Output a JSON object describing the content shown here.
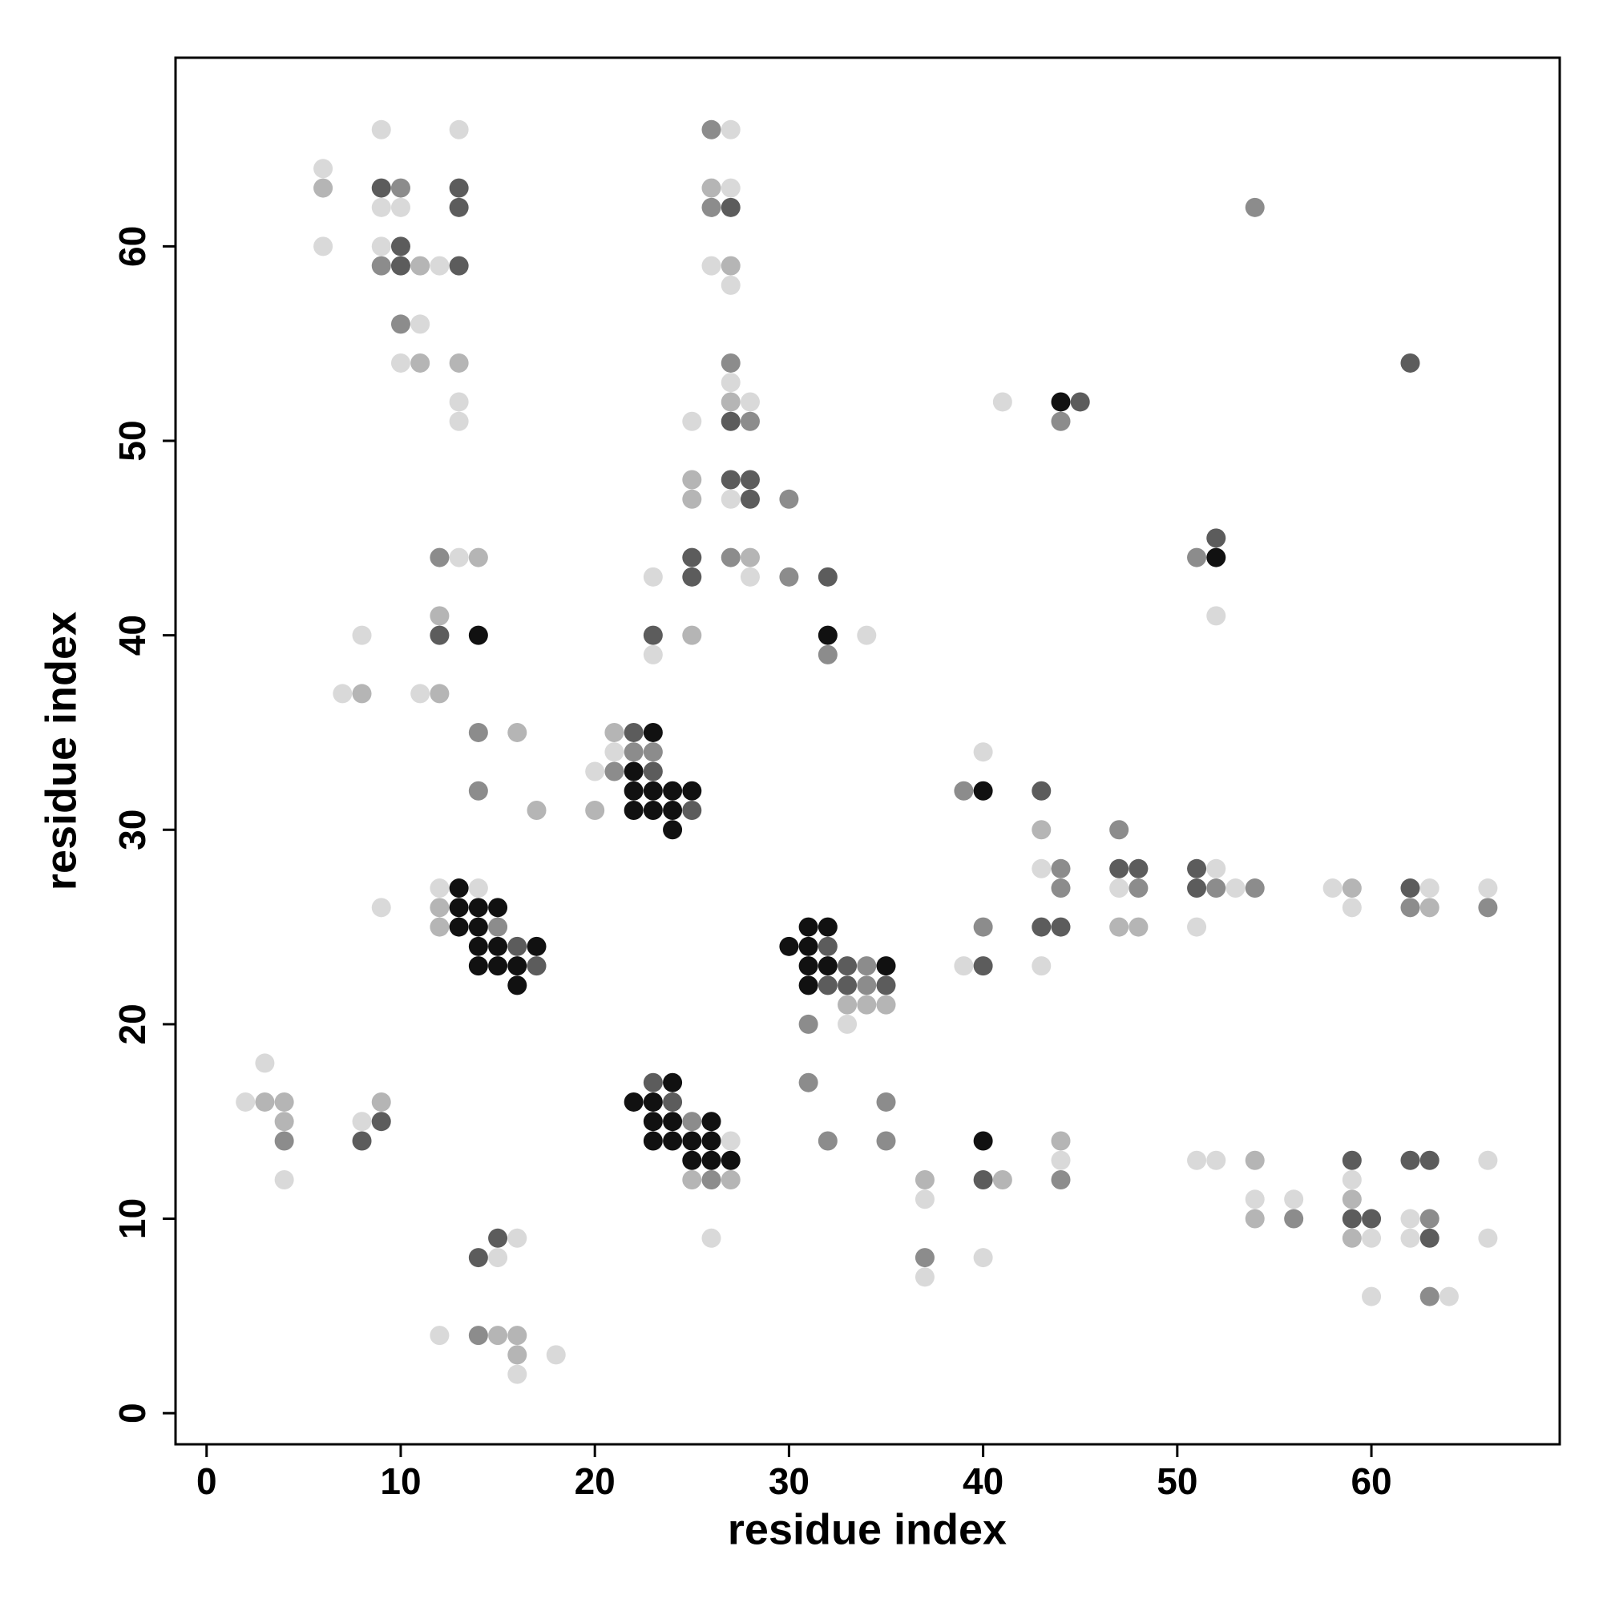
{
  "chart_data": {
    "type": "scatter",
    "xlabel": "residue index",
    "ylabel": "residue index",
    "xlim": [
      -1.6,
      69.7
    ],
    "ylim": [
      -1.6,
      69.7
    ],
    "xticks": [
      0,
      10,
      20,
      30,
      40,
      50,
      60
    ],
    "yticks": [
      0,
      10,
      20,
      30,
      40,
      50,
      60
    ],
    "grid": false,
    "series": [
      {
        "color": "#d9d9d9",
        "x": [
          6,
          6,
          9,
          9,
          9,
          10,
          10,
          11,
          12,
          13,
          13,
          13,
          27,
          27,
          26,
          27,
          27,
          28,
          25,
          27,
          23,
          28,
          23,
          34,
          41,
          52,
          13,
          8,
          7,
          11,
          20,
          21,
          9,
          12,
          14,
          33,
          40,
          43,
          39,
          43,
          47,
          52,
          53,
          51,
          58,
          59,
          63,
          66,
          3,
          2,
          4,
          8,
          15,
          16,
          12,
          16,
          18,
          26,
          27,
          37,
          37,
          40,
          44,
          51,
          52,
          54,
          56,
          59,
          60,
          60,
          62,
          62,
          64,
          66,
          66
        ],
        "values": [
          64,
          60,
          66,
          62,
          60,
          62,
          54,
          56,
          59,
          66,
          52,
          51,
          66,
          63,
          59,
          58,
          53,
          52,
          51,
          47,
          43,
          43,
          39,
          40,
          52,
          41,
          44,
          40,
          37,
          37,
          33,
          34,
          26,
          27,
          27,
          20,
          34,
          28,
          23,
          23,
          27,
          28,
          27,
          25,
          27,
          26,
          27,
          27,
          18,
          16,
          12,
          15,
          8,
          9,
          4,
          2,
          3,
          9,
          14,
          11,
          7,
          8,
          13,
          13,
          13,
          11,
          11,
          12,
          9,
          6,
          10,
          9,
          6,
          13,
          9
        ]
      },
      {
        "color": "#b5b5b5",
        "x": [
          6,
          11,
          11,
          13,
          26,
          27,
          27,
          25,
          25,
          28,
          25,
          12,
          14,
          8,
          12,
          16,
          17,
          20,
          21,
          12,
          12,
          33,
          34,
          35,
          43,
          47,
          48,
          59,
          63,
          3,
          4,
          4,
          9,
          15,
          16,
          16,
          25,
          27,
          37,
          41,
          44,
          54,
          54,
          59,
          59
        ],
        "values": [
          63,
          59,
          54,
          54,
          63,
          59,
          52,
          48,
          47,
          44,
          40,
          41,
          44,
          37,
          37,
          35,
          31,
          31,
          35,
          26,
          25,
          21,
          21,
          21,
          30,
          25,
          25,
          27,
          26,
          16,
          16,
          15,
          16,
          4,
          4,
          3,
          12,
          12,
          12,
          12,
          14,
          13,
          10,
          11,
          9
        ]
      },
      {
        "color": "#8c8c8c",
        "x": [
          9,
          10,
          10,
          26,
          26,
          27,
          28,
          30,
          27,
          30,
          32,
          44,
          54,
          51,
          12,
          14,
          14,
          21,
          22,
          23,
          15,
          31,
          34,
          34,
          39,
          44,
          44,
          40,
          47,
          48,
          52,
          54,
          62,
          66,
          4,
          14,
          25,
          26,
          31,
          32,
          35,
          35,
          37,
          44,
          56,
          63,
          63
        ],
        "values": [
          59,
          63,
          56,
          66,
          62,
          54,
          51,
          47,
          44,
          43,
          39,
          51,
          62,
          44,
          44,
          35,
          32,
          33,
          34,
          34,
          25,
          20,
          23,
          22,
          32,
          28,
          27,
          25,
          30,
          27,
          27,
          27,
          26,
          26,
          14,
          4,
          15,
          12,
          17,
          14,
          16,
          14,
          8,
          12,
          10,
          10,
          6
        ]
      },
      {
        "color": "#5c5c5c",
        "x": [
          9,
          10,
          10,
          13,
          13,
          13,
          27,
          27,
          27,
          28,
          28,
          25,
          25,
          32,
          23,
          45,
          62,
          52,
          12,
          22,
          23,
          25,
          16,
          17,
          32,
          32,
          33,
          33,
          35,
          43,
          43,
          44,
          40,
          47,
          48,
          51,
          51,
          62,
          8,
          9,
          14,
          15,
          23,
          24,
          40,
          59,
          59,
          60,
          62,
          63,
          63
        ],
        "values": [
          63,
          60,
          59,
          63,
          62,
          59,
          62,
          51,
          48,
          48,
          47,
          44,
          43,
          43,
          40,
          52,
          54,
          45,
          40,
          35,
          33,
          31,
          24,
          23,
          24,
          22,
          23,
          22,
          22,
          32,
          25,
          25,
          23,
          28,
          28,
          28,
          27,
          27,
          14,
          15,
          8,
          9,
          17,
          16,
          12,
          13,
          10,
          10,
          13,
          13,
          9
        ]
      },
      {
        "color": "#111111",
        "x": [
          32,
          14,
          44,
          52,
          22,
          22,
          22,
          23,
          23,
          23,
          24,
          24,
          24,
          25,
          13,
          13,
          13,
          14,
          14,
          14,
          14,
          15,
          15,
          15,
          16,
          16,
          17,
          30,
          31,
          31,
          31,
          31,
          32,
          32,
          35,
          40,
          22,
          23,
          23,
          23,
          24,
          24,
          24,
          25,
          25,
          26,
          26,
          26,
          27,
          40
        ],
        "values": [
          40,
          40,
          52,
          44,
          33,
          32,
          31,
          35,
          32,
          31,
          32,
          31,
          30,
          32,
          27,
          26,
          25,
          26,
          25,
          24,
          23,
          26,
          24,
          23,
          23,
          22,
          24,
          24,
          25,
          24,
          23,
          22,
          25,
          23,
          23,
          32,
          16,
          16,
          15,
          14,
          17,
          15,
          14,
          14,
          13,
          15,
          14,
          13,
          13,
          14
        ]
      }
    ]
  }
}
